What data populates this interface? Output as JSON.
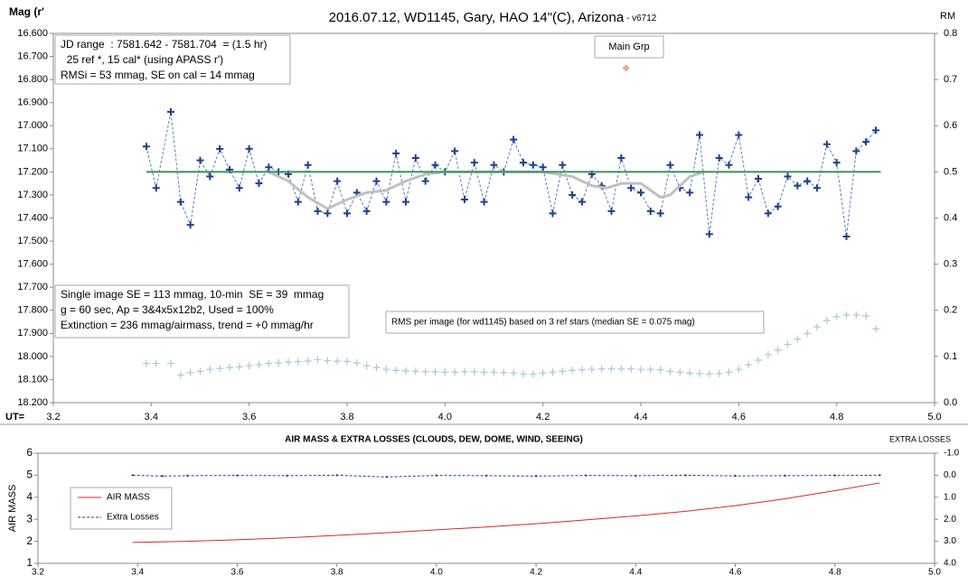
{
  "chart_data": [
    {
      "type": "line",
      "title": "2016.07.12,  WD1145, Gary, HAO  14\"(C), Arizona",
      "title_note": " - v6712",
      "ylabel": "Mag (r'",
      "y2label": "RM",
      "xlabel": "UT=",
      "xlim": [
        3.2,
        5.0
      ],
      "xticks": [
        3.2,
        3.4,
        3.6,
        3.8,
        {
          "value": 4,
          "label": "4.0"
        },
        4.2,
        4.4,
        4.6,
        4.8,
        {
          "value": 5,
          "label": "5.0"
        }
      ],
      "ylim": [
        18.2,
        16.6
      ],
      "yticks": [
        {
          "value": 16.6,
          "label": "16.600"
        },
        {
          "value": 16.7,
          "label": "16.700"
        },
        {
          "value": 16.8,
          "label": "16.800"
        },
        {
          "value": 16.9,
          "label": "16.900"
        },
        {
          "value": 17.0,
          "label": "17.000"
        },
        {
          "value": 17.1,
          "label": "17.100"
        },
        {
          "value": 17.2,
          "label": "17.200"
        },
        {
          "value": 17.3,
          "label": "17.300"
        },
        {
          "value": 17.4,
          "label": "17.400"
        },
        {
          "value": 17.5,
          "label": "17.500"
        },
        {
          "value": 17.6,
          "label": "17.600"
        },
        {
          "value": 17.7,
          "label": "17.700"
        },
        {
          "value": 17.8,
          "label": "17.800"
        },
        {
          "value": 17.9,
          "label": "17.900"
        },
        {
          "value": 18.0,
          "label": "18.000"
        },
        {
          "value": 18.1,
          "label": "18.100"
        },
        {
          "value": 18.2,
          "label": "18.200"
        }
      ],
      "y2lim": [
        0,
        0.8
      ],
      "y2ticks": [
        {
          "value": 0,
          "label": "0.0"
        },
        0.1,
        0.2,
        0.3,
        0.4,
        0.5,
        0.6,
        0.7,
        0.8
      ],
      "annotations": [
        {
          "lines": [
            "JD range  : 7581.642 - 7581.704  = (1.5 hr)",
            "  25 ref *, 15 cal* (using APASS r')",
            "RMSi = 53 mmag, SE on cal = 14 mmag"
          ]
        },
        {
          "lines": [
            "Single image SE = 113 mmag, 10-min  SE = 39  mmag",
            "g = 60 sec, Ap = 3&4x5x12b2, Used = 100%",
            "Extinction = 236 mmag/airmass, trend = +0 mmag/hr"
          ]
        },
        {
          "lines": [
            "RMS per image (for wd1145) based on 3 ref stars (median SE = 0.075 mag)"
          ]
        }
      ],
      "x": [
        3.39,
        3.41,
        3.44,
        3.46,
        3.48,
        3.5,
        3.52,
        3.54,
        3.56,
        3.58,
        3.6,
        3.62,
        3.64,
        3.66,
        3.68,
        3.7,
        3.72,
        3.74,
        3.76,
        3.78,
        3.8,
        3.82,
        3.84,
        3.86,
        3.88,
        3.9,
        3.92,
        3.94,
        3.96,
        3.98,
        4.0,
        4.02,
        4.04,
        4.06,
        4.08,
        4.1,
        4.12,
        4.14,
        4.16,
        4.18,
        4.2,
        4.22,
        4.24,
        4.26,
        4.28,
        4.3,
        4.32,
        4.34,
        4.36,
        4.38,
        4.4,
        4.42,
        4.44,
        4.46,
        4.48,
        4.5,
        4.52,
        4.54,
        4.56,
        4.58,
        4.6,
        4.62,
        4.64,
        4.66,
        4.68,
        4.7,
        4.72,
        4.74,
        4.76,
        4.78,
        4.8,
        4.82,
        4.84,
        4.86,
        4.88
      ],
      "series": [
        {
          "color": "#4f81bd",
          "marker": "plus",
          "marker_color": "#1f3f8f",
          "dash": true,
          "values": [
            17.09,
            17.27,
            16.94,
            17.33,
            17.43,
            17.15,
            17.22,
            17.1,
            17.19,
            17.27,
            17.1,
            17.25,
            17.18,
            17.2,
            17.21,
            17.33,
            17.17,
            17.37,
            17.38,
            17.24,
            17.38,
            17.29,
            17.37,
            17.24,
            17.33,
            17.12,
            17.33,
            17.14,
            17.24,
            17.17,
            17.2,
            17.11,
            17.32,
            17.16,
            17.33,
            17.17,
            17.2,
            17.06,
            17.16,
            17.17,
            17.18,
            17.38,
            17.17,
            17.3,
            17.33,
            17.21,
            17.26,
            17.37,
            17.14,
            17.27,
            17.29,
            17.37,
            17.38,
            17.17,
            17.27,
            17.29,
            17.04,
            17.47,
            17.14,
            17.17,
            17.04,
            17.31,
            17.23,
            17.38,
            17.35,
            17.22,
            17.26,
            17.24,
            17.27,
            17.08,
            17.16,
            17.48,
            17.11,
            17.07,
            17.02
          ]
        },
        {
          "color": "#a8c8d8",
          "marker": "plus",
          "marker_color": "#a8c8d8",
          "line": false,
          "axis": "y2",
          "values": [
            0.085,
            0.085,
            0.085,
            0.06,
            0.065,
            0.068,
            0.072,
            0.074,
            0.076,
            0.078,
            0.08,
            0.082,
            0.085,
            0.086,
            0.088,
            0.089,
            0.09,
            0.093,
            0.091,
            0.09,
            0.089,
            0.086,
            0.08,
            0.076,
            0.072,
            0.07,
            0.069,
            0.068,
            0.067,
            0.067,
            0.066,
            0.066,
            0.067,
            0.067,
            0.066,
            0.066,
            0.065,
            0.064,
            0.062,
            0.062,
            0.064,
            0.066,
            0.068,
            0.07,
            0.071,
            0.072,
            0.073,
            0.073,
            0.073,
            0.073,
            0.072,
            0.072,
            0.071,
            0.068,
            0.066,
            0.064,
            0.063,
            0.062,
            0.063,
            0.066,
            0.072,
            0.082,
            0.092,
            0.104,
            0.114,
            0.126,
            0.138,
            0.15,
            0.164,
            0.178,
            0.186,
            0.19,
            0.19,
            0.188,
            0.16
          ]
        },
        {
          "color": "#c0c0c0",
          "width": 3,
          "marker": "none",
          "x": [
            3.64,
            3.68,
            3.72,
            3.76,
            3.8,
            3.84,
            3.88,
            3.92,
            3.96,
            4.0,
            4.1,
            4.2,
            4.26,
            4.3,
            4.33,
            4.36,
            4.4,
            4.44,
            4.46,
            4.5,
            4.53
          ],
          "values": [
            17.2,
            17.24,
            17.31,
            17.36,
            17.32,
            17.29,
            17.28,
            17.24,
            17.21,
            17.2,
            17.2,
            17.2,
            17.22,
            17.26,
            17.27,
            17.25,
            17.25,
            17.31,
            17.3,
            17.22,
            17.2
          ]
        },
        {
          "color": "#3c8f5a",
          "width": 2,
          "marker": "none",
          "x": [
            3.39,
            4.89
          ],
          "values": [
            17.2,
            17.2
          ]
        },
        {
          "name": "Main Grp",
          "color": "#f4a582",
          "marker": "diamond",
          "line": false,
          "x": [
            4.37
          ],
          "values": [
            16.75
          ]
        }
      ]
    },
    {
      "type": "line",
      "title": "AIR MASS & EXTRA LOSSES (CLOUDS, DEW, DOME, WIND, SEEING)",
      "ylabel": "AIR MASS",
      "y2label": "EXTRA LOSSES",
      "xlim": [
        3.2,
        5.0
      ],
      "xticks": [
        3.2,
        3.4,
        3.6,
        3.8,
        {
          "value": 4,
          "label": "4.0"
        },
        4.2,
        4.4,
        4.6,
        4.8,
        {
          "value": 5,
          "label": "5.0"
        }
      ],
      "ylim": [
        1,
        6
      ],
      "yticks": [
        1,
        2,
        3,
        4,
        5,
        6
      ],
      "y2lim": [
        4,
        -1
      ],
      "y2ticks": [
        {
          "value": -1,
          "label": "-1.0"
        },
        {
          "value": 0,
          "label": "0.0"
        },
        {
          "value": 1,
          "label": "1.0"
        },
        {
          "value": 2,
          "label": "2.0"
        },
        {
          "value": 3,
          "label": "3.0"
        },
        {
          "value": 4,
          "label": "4.0"
        }
      ],
      "series": [
        {
          "name": "AIR MASS",
          "color": "#d9262b",
          "marker": "none",
          "x": [
            3.39,
            3.5,
            3.6,
            3.7,
            3.8,
            3.9,
            4.0,
            4.1,
            4.2,
            4.3,
            4.4,
            4.5,
            4.6,
            4.7,
            4.8,
            4.89
          ],
          "values": [
            1.95,
            2.0,
            2.07,
            2.16,
            2.27,
            2.39,
            2.52,
            2.65,
            2.8,
            2.97,
            3.15,
            3.36,
            3.62,
            3.93,
            4.3,
            4.65
          ]
        },
        {
          "name": "Extra Losses",
          "color": "#1f3f8f",
          "marker": "dot",
          "dash": true,
          "axis": "y2",
          "x": [
            3.39,
            3.45,
            3.5,
            3.6,
            3.7,
            3.8,
            3.9,
            4.0,
            4.1,
            4.2,
            4.3,
            4.4,
            4.5,
            4.6,
            4.7,
            4.8,
            4.89
          ],
          "values": [
            0.0,
            0.04,
            0.02,
            0.01,
            0.02,
            0.0,
            0.08,
            0.01,
            0.02,
            0.04,
            0.01,
            0.02,
            0.0,
            0.03,
            0.02,
            0.01,
            0.0
          ]
        }
      ]
    }
  ]
}
